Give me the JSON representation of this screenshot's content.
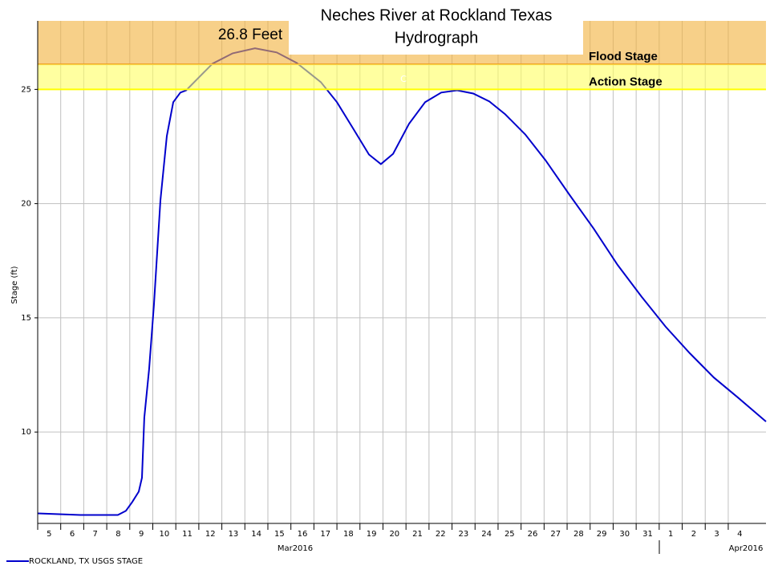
{
  "chart_data": {
    "type": "line",
    "title": "Neches River at Rockland Texas",
    "subtitle": "Hydrograph",
    "y_label": "Stage (ft)",
    "annotations": [
      "26.8 Feet",
      "C"
    ],
    "xgroup_labels": [
      "Mar2016",
      "Apr2016"
    ],
    "xlim": [
      0,
      31.64
    ],
    "xticks": [
      {
        "value": 0,
        "label": "5"
      },
      {
        "value": 1,
        "label": "6"
      },
      {
        "value": 2,
        "label": "7"
      },
      {
        "value": 3,
        "label": "8"
      },
      {
        "value": 4,
        "label": "9"
      },
      {
        "value": 5,
        "label": "10"
      },
      {
        "value": 6,
        "label": "11"
      },
      {
        "value": 7,
        "label": "12"
      },
      {
        "value": 8,
        "label": "13"
      },
      {
        "value": 9,
        "label": "14"
      },
      {
        "value": 10,
        "label": "15"
      },
      {
        "value": 11,
        "label": "16"
      },
      {
        "value": 12,
        "label": "17"
      },
      {
        "value": 13,
        "label": "18"
      },
      {
        "value": 14,
        "label": "19"
      },
      {
        "value": 15,
        "label": "20"
      },
      {
        "value": 16,
        "label": "21"
      },
      {
        "value": 17,
        "label": "22"
      },
      {
        "value": 18,
        "label": "23"
      },
      {
        "value": 19,
        "label": "24"
      },
      {
        "value": 20,
        "label": "25"
      },
      {
        "value": 21,
        "label": "26"
      },
      {
        "value": 22,
        "label": "27"
      },
      {
        "value": 23,
        "label": "28"
      },
      {
        "value": 24,
        "label": "29"
      },
      {
        "value": 25,
        "label": "30"
      },
      {
        "value": 26,
        "label": "31"
      },
      {
        "value": 27,
        "label": "1"
      },
      {
        "value": 28,
        "label": "2"
      },
      {
        "value": 29,
        "label": "3"
      },
      {
        "value": 30,
        "label": "4"
      }
    ],
    "ylim": [
      6,
      28
    ],
    "yticks": [
      10,
      15,
      20,
      25
    ],
    "grid": true,
    "thresholds": [
      {
        "name": "Flood Stage",
        "value": 26.1,
        "color": "#f2b13a",
        "line_color": "#f0a020"
      },
      {
        "name": "Action Stage",
        "value": 25,
        "color": "#ffff60",
        "line_color": "#ffff00"
      }
    ],
    "series": [
      {
        "name": "ROCKLAND, TX USGS STAGE",
        "color": "#0000cc",
        "x": [
          0,
          1.85,
          3.48,
          3.83,
          4.11,
          4.39,
          4.53,
          4.63,
          4.84,
          5.05,
          5.33,
          5.61,
          5.89,
          6.2,
          6.45,
          6.9,
          7.6,
          8.47,
          9.44,
          10.38,
          11.25,
          12.3,
          13.0,
          13.69,
          14.39,
          14.91,
          15.44,
          16.13,
          16.83,
          17.53,
          18.22,
          18.92,
          19.62,
          20.31,
          21.18,
          22.06,
          23.1,
          24.15,
          25.19,
          26.24,
          27.28,
          28.33,
          29.37,
          30.42,
          31.64
        ],
        "values": [
          6.44,
          6.37,
          6.37,
          6.55,
          6.94,
          7.39,
          8.0,
          10.63,
          12.75,
          15.56,
          20.14,
          22.96,
          24.44,
          24.86,
          24.96,
          25.42,
          26.13,
          26.58,
          26.8,
          26.62,
          26.16,
          25.32,
          24.44,
          23.31,
          22.15,
          21.73,
          22.18,
          23.49,
          24.44,
          24.86,
          24.96,
          24.82,
          24.47,
          23.91,
          23.03,
          21.9,
          20.39,
          18.91,
          17.32,
          15.92,
          14.61,
          13.45,
          12.39,
          11.51,
          10.46
        ]
      }
    ]
  }
}
